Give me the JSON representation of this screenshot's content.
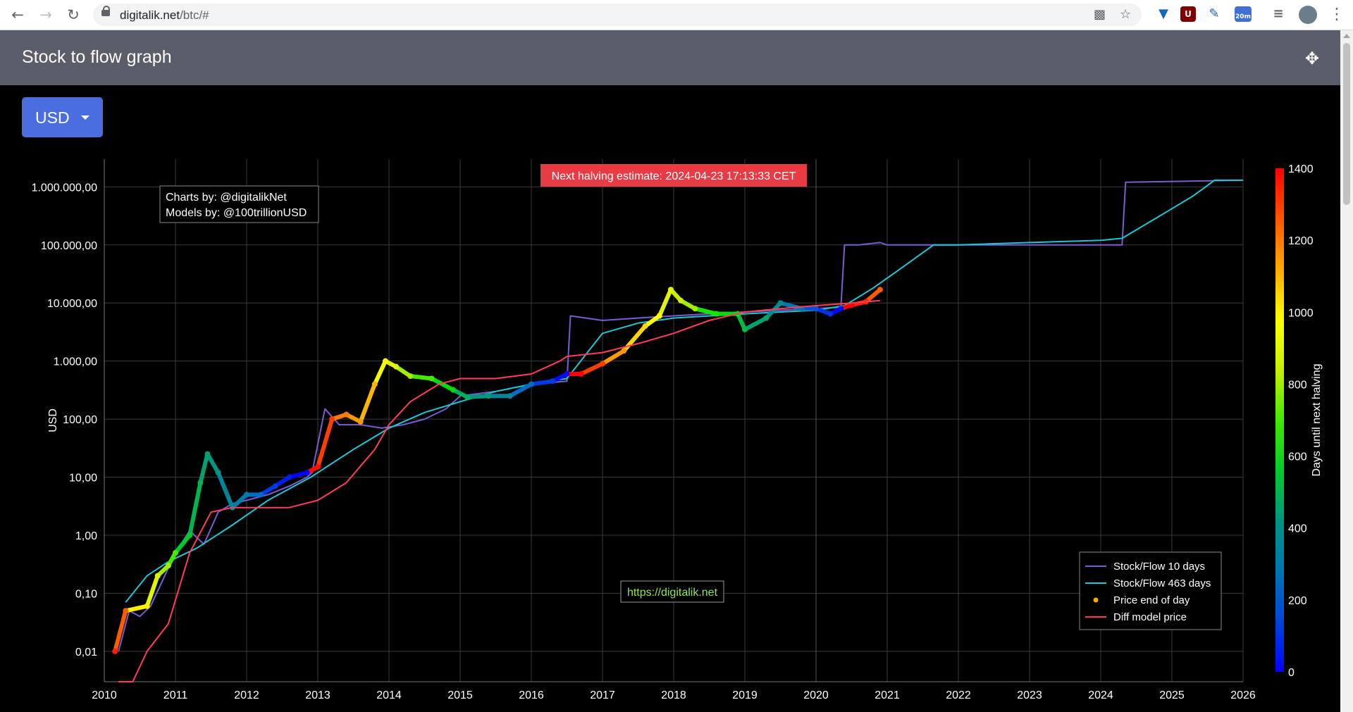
{
  "browser": {
    "url_host": "digitalik.net",
    "url_path": "/btc/#",
    "ext_badge": "20m"
  },
  "panel": {
    "title": "Stock to flow graph"
  },
  "currency_button": {
    "label": "USD"
  },
  "colors": {
    "panel_header": "#5a5d6a",
    "button": "#4a6ee0",
    "sf10": "#7b5ccf",
    "sf463": "#1fc6d3",
    "diff": "#ff3d5a",
    "annotation": "#e83b44",
    "link": "#8ee84a"
  },
  "chart_data": {
    "type": "line",
    "y_scale": "log",
    "ylim": [
      0.003,
      3000000
    ],
    "xlim": [
      2010,
      2026
    ],
    "ylabel": "USD",
    "y_ticks": [
      0.01,
      0.1,
      1,
      10,
      100,
      1000,
      10000,
      100000,
      1000000
    ],
    "y_tick_labels": [
      "0,01",
      "0,10",
      "1,00",
      "10,00",
      "100,00",
      "1.000,00",
      "10.000,00",
      "100.000,00",
      "1.000.000,00"
    ],
    "x_ticks": [
      2010,
      2011,
      2012,
      2013,
      2014,
      2015,
      2016,
      2017,
      2018,
      2019,
      2020,
      2021,
      2022,
      2023,
      2024,
      2025,
      2026
    ],
    "x_tick_labels": [
      "2010",
      "2011",
      "2012",
      "2013",
      "2014",
      "2015",
      "2016",
      "2017",
      "2018",
      "2019",
      "2020",
      "2021",
      "2022",
      "2023",
      "2024",
      "2025",
      "2026"
    ],
    "grid": true,
    "legend_position": "bottom-right",
    "annotations": {
      "credits": [
        "Charts by: @digitalikNet",
        "Models by: @100trillionUSD"
      ],
      "halving": "Next halving estimate: 2024-04-23 17:13:33 CET",
      "link": "https://digitalik.net"
    },
    "colorbar": {
      "title": "Days until next halving",
      "min": 0,
      "max": 1400,
      "ticks": [
        0,
        200,
        400,
        600,
        800,
        1000,
        1200,
        1400
      ],
      "tick_labels": [
        "0",
        "200",
        "400",
        "600",
        "800",
        "1000",
        "1200",
        "1400"
      ]
    },
    "series": [
      {
        "name": "Stock/Flow 10 days",
        "kind": "line",
        "color": "#7b5ccf",
        "x": [
          2010.2,
          2010.35,
          2010.5,
          2010.65,
          2010.85,
          2011.0,
          2011.2,
          2011.4,
          2011.6,
          2011.8,
          2012.0,
          2012.3,
          2012.6,
          2012.85,
          2012.92,
          2013.1,
          2013.3,
          2013.6,
          2013.9,
          2014.2,
          2014.5,
          2014.8,
          2015.0,
          2015.5,
          2016.0,
          2016.5,
          2016.55,
          2017.0,
          2017.5,
          2018.0,
          2018.5,
          2019.0,
          2019.5,
          2020.0,
          2020.35,
          2020.4,
          2020.6,
          2020.9,
          2021.0,
          2021.6,
          2022.0,
          2023.0,
          2024.0,
          2024.3,
          2024.35,
          2026.0
        ],
        "y": [
          0.01,
          0.05,
          0.04,
          0.06,
          0.2,
          0.5,
          1.2,
          0.7,
          2.5,
          3.5,
          4,
          5,
          7,
          10,
          12,
          150,
          80,
          80,
          70,
          80,
          100,
          150,
          250,
          300,
          400,
          450,
          6000,
          5000,
          5500,
          6000,
          6500,
          7000,
          7500,
          8000,
          8500,
          100000,
          100000,
          110000,
          100000,
          100000,
          100000,
          100000,
          100000,
          100000,
          1200000,
          1300000
        ]
      },
      {
        "name": "Stock/Flow 463 days",
        "kind": "line",
        "color": "#1fc6d3",
        "x": [
          2010.3,
          2010.6,
          2010.9,
          2011.3,
          2011.8,
          2012.3,
          2012.9,
          2013.5,
          2014.0,
          2014.5,
          2015.0,
          2015.5,
          2016.0,
          2016.5,
          2017.0,
          2017.5,
          2018.0,
          2018.5,
          2019.0,
          2019.5,
          2020.0,
          2020.4,
          2020.8,
          2021.2,
          2021.65,
          2022.0,
          2023.0,
          2024.0,
          2024.3,
          2024.8,
          2025.3,
          2025.6,
          2026.0
        ],
        "y": [
          0.07,
          0.2,
          0.35,
          0.6,
          1.5,
          4,
          10,
          30,
          70,
          130,
          200,
          300,
          400,
          500,
          3000,
          4500,
          5500,
          6000,
          6500,
          7000,
          7500,
          9000,
          18000,
          40000,
          100000,
          100000,
          110000,
          120000,
          130000,
          300000,
          700000,
          1300000,
          1300000
        ]
      },
      {
        "name": "Price end of day",
        "kind": "scatter",
        "color_scale": "days_until_halving",
        "x": [
          2010.15,
          2010.3,
          2010.6,
          2010.75,
          2010.9,
          2011.0,
          2011.2,
          2011.35,
          2011.45,
          2011.6,
          2011.8,
          2012.0,
          2012.2,
          2012.4,
          2012.6,
          2012.85,
          2013.0,
          2013.2,
          2013.4,
          2013.6,
          2013.8,
          2013.95,
          2014.1,
          2014.3,
          2014.6,
          2014.9,
          2015.1,
          2015.4,
          2015.7,
          2016.0,
          2016.3,
          2016.5,
          2016.7,
          2017.0,
          2017.3,
          2017.6,
          2017.8,
          2017.96,
          2018.1,
          2018.3,
          2018.6,
          2018.9,
          2019.0,
          2019.3,
          2019.5,
          2019.8,
          2020.0,
          2020.2,
          2020.35,
          2020.5,
          2020.7,
          2020.9
        ],
        "y": [
          0.01,
          0.05,
          0.06,
          0.2,
          0.3,
          0.5,
          1,
          8,
          25,
          12,
          3,
          5,
          5,
          7,
          10,
          12,
          15,
          100,
          120,
          90,
          400,
          1000,
          800,
          550,
          500,
          320,
          240,
          250,
          250,
          400,
          450,
          600,
          600,
          900,
          1500,
          4000,
          6000,
          17000,
          11000,
          8000,
          6500,
          6500,
          3500,
          5500,
          10000,
          8000,
          8000,
          6500,
          8000,
          9200,
          10500,
          17000
        ],
        "days": [
          1350,
          1250,
          1000,
          900,
          800,
          700,
          560,
          500,
          450,
          420,
          350,
          300,
          230,
          120,
          60,
          5,
          1380,
          1300,
          1200,
          1150,
          1100,
          950,
          900,
          800,
          700,
          600,
          480,
          420,
          350,
          240,
          120,
          20,
          1400,
          1300,
          1150,
          1050,
          980,
          900,
          850,
          800,
          650,
          600,
          520,
          450,
          380,
          280,
          170,
          100,
          10,
          1400,
          1350,
          1250
        ]
      },
      {
        "name": "Diff model price",
        "kind": "line",
        "color": "#ff3d5a",
        "x": [
          2010.2,
          2010.4,
          2010.6,
          2010.9,
          2011.2,
          2011.5,
          2011.8,
          2012.2,
          2012.6,
          2013.0,
          2013.4,
          2013.8,
          2014.0,
          2014.3,
          2014.7,
          2015.0,
          2015.5,
          2016.0,
          2016.4,
          2016.5,
          2017.0,
          2017.5,
          2018.0,
          2018.5,
          2019.0,
          2019.5,
          2020.0,
          2020.5,
          2020.9
        ],
        "y": [
          0.003,
          0.003,
          0.01,
          0.03,
          0.5,
          2.5,
          3,
          3,
          3,
          4,
          8,
          30,
          80,
          200,
          400,
          500,
          500,
          600,
          1000,
          1200,
          1400,
          2000,
          3000,
          5000,
          7000,
          8000,
          9000,
          10000,
          11000
        ]
      }
    ]
  }
}
